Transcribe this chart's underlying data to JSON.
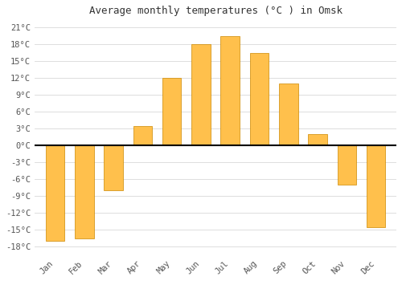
{
  "title": "Average monthly temperatures (°C ) in Omsk",
  "months": [
    "Jan",
    "Feb",
    "Mar",
    "Apr",
    "May",
    "Jun",
    "Jul",
    "Aug",
    "Sep",
    "Oct",
    "Nov",
    "Dec"
  ],
  "values": [
    -17,
    -16.5,
    -8,
    3.5,
    12,
    18,
    19.5,
    16.5,
    11,
    2,
    -7,
    -14.5
  ],
  "bar_color_top": "#FFC04C",
  "bar_color_bottom": "#FFB020",
  "bar_edge_color": "#CC8800",
  "plot_bg_color": "#ffffff",
  "fig_bg_color": "#ffffff",
  "grid_color": "#d8d8d8",
  "yticks": [
    -18,
    -15,
    -12,
    -9,
    -6,
    -3,
    0,
    3,
    6,
    9,
    12,
    15,
    18,
    21
  ],
  "ylim": [
    -19.5,
    22.5
  ],
  "title_fontsize": 9,
  "tick_fontsize": 7.5,
  "bar_width": 0.65
}
